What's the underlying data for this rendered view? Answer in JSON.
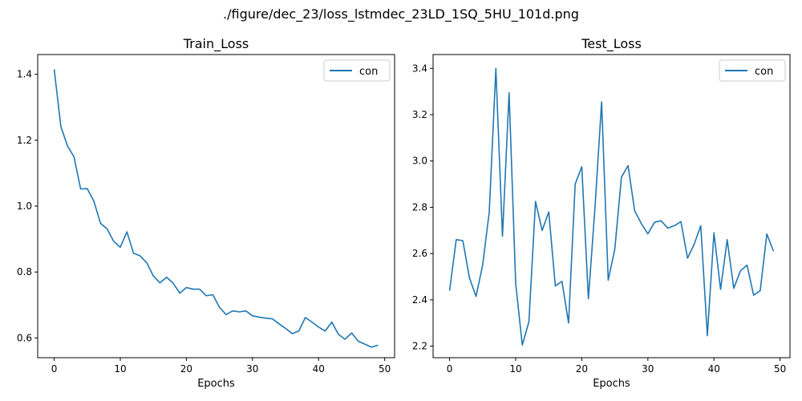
{
  "figure": {
    "suptitle": "./figure/dec_23/loss_lstmdec_23LD_1SQ_5HU_101d.png"
  },
  "chart_data": [
    {
      "type": "line",
      "title": "Train_Loss",
      "xlabel": "Epochs",
      "ylabel": "",
      "xlim": [
        -2.5,
        51.5
      ],
      "ylim": [
        0.54,
        1.46
      ],
      "xticks": [
        0,
        10,
        20,
        30,
        40,
        50
      ],
      "yticks": [
        0.6,
        0.8,
        1.0,
        1.2,
        1.4
      ],
      "ytick_labels": [
        "0.6",
        "0.8",
        "1.0",
        "1.2",
        "1.4"
      ],
      "legend_position": "top-right",
      "grid": false,
      "series": [
        {
          "name": "con",
          "color": "#1f77b4",
          "x": [
            0,
            1,
            2,
            3,
            4,
            5,
            6,
            7,
            8,
            9,
            10,
            11,
            12,
            13,
            14,
            15,
            16,
            17,
            18,
            19,
            20,
            21,
            22,
            23,
            24,
            25,
            26,
            27,
            28,
            29,
            30,
            31,
            32,
            33,
            34,
            35,
            36,
            37,
            38,
            39,
            40,
            41,
            42,
            43,
            44,
            45,
            46,
            47,
            48,
            49
          ],
          "values": [
            1.415,
            1.242,
            1.183,
            1.149,
            1.052,
            1.053,
            1.015,
            0.948,
            0.931,
            0.893,
            0.875,
            0.922,
            0.857,
            0.849,
            0.828,
            0.788,
            0.767,
            0.784,
            0.766,
            0.736,
            0.753,
            0.748,
            0.748,
            0.728,
            0.731,
            0.693,
            0.671,
            0.682,
            0.679,
            0.682,
            0.667,
            0.663,
            0.66,
            0.658,
            0.643,
            0.629,
            0.613,
            0.621,
            0.662,
            0.648,
            0.633,
            0.621,
            0.648,
            0.611,
            0.596,
            0.615,
            0.59,
            0.581,
            0.572,
            0.578
          ]
        }
      ]
    },
    {
      "type": "line",
      "title": "Test_Loss",
      "xlabel": "Epochs",
      "ylabel": "",
      "xlim": [
        -2.5,
        51.5
      ],
      "ylim": [
        2.15,
        3.46
      ],
      "xticks": [
        0,
        10,
        20,
        30,
        40,
        50
      ],
      "yticks": [
        2.2,
        2.4,
        2.6,
        2.8,
        3.0,
        3.2,
        3.4
      ],
      "ytick_labels": [
        "2.2",
        "2.4",
        "2.6",
        "2.8",
        "3.0",
        "3.2",
        "3.4"
      ],
      "legend_position": "top-right",
      "grid": false,
      "series": [
        {
          "name": "con",
          "color": "#1f77b4",
          "x": [
            0,
            1,
            2,
            3,
            4,
            5,
            6,
            7,
            8,
            9,
            10,
            11,
            12,
            13,
            14,
            15,
            16,
            17,
            18,
            19,
            20,
            21,
            22,
            23,
            24,
            25,
            26,
            27,
            28,
            29,
            30,
            31,
            32,
            33,
            34,
            35,
            36,
            37,
            38,
            39,
            40,
            41,
            42,
            43,
            44,
            45,
            46,
            47,
            48,
            49
          ],
          "values": [
            2.44,
            2.66,
            2.656,
            2.495,
            2.415,
            2.55,
            2.78,
            3.4,
            2.675,
            3.295,
            2.47,
            2.205,
            2.305,
            2.825,
            2.7,
            2.78,
            2.46,
            2.48,
            2.3,
            2.9,
            2.975,
            2.405,
            2.8,
            3.255,
            2.485,
            2.62,
            2.93,
            2.98,
            2.785,
            2.73,
            2.685,
            2.735,
            2.742,
            2.71,
            2.72,
            2.738,
            2.58,
            2.64,
            2.72,
            2.245,
            2.69,
            2.445,
            2.66,
            2.45,
            2.525,
            2.55,
            2.42,
            2.44,
            2.685,
            2.61
          ]
        }
      ]
    }
  ]
}
